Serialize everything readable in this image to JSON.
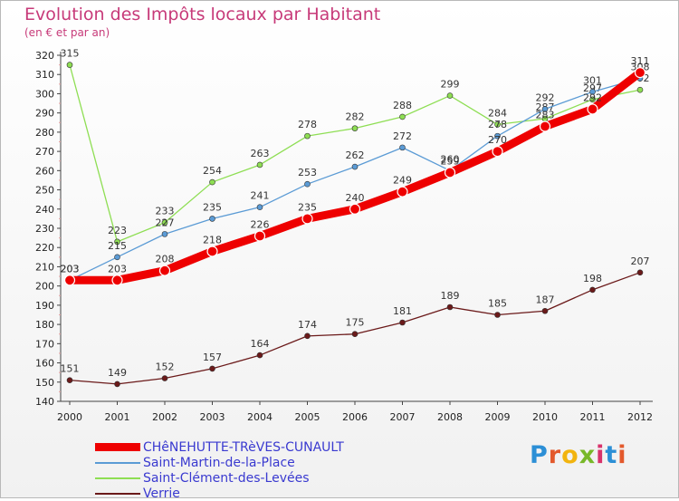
{
  "title": "Evolution des Impôts locaux par Habitant",
  "subtitle": "(en € et par an)",
  "watermark": "Proxiti",
  "chart_data": {
    "type": "line",
    "title": "Evolution des Impôts locaux par Habitant",
    "subtitle": "(en € et par an)",
    "xlabel": "",
    "ylabel": "",
    "ylim": [
      140,
      320
    ],
    "ytick_step": 10,
    "grid": false,
    "categories": [
      "2000",
      "2001",
      "2002",
      "2003",
      "2004",
      "2005",
      "2006",
      "2007",
      "2008",
      "2009",
      "2010",
      "2011",
      "2012"
    ],
    "series": [
      {
        "name": "Verrie",
        "color": "#6b1a1a",
        "emphasis": false,
        "values": [
          151,
          149,
          152,
          157,
          164,
          174,
          175,
          181,
          189,
          185,
          187,
          198,
          207
        ]
      },
      {
        "name": "Saint-Clément-des-Levées",
        "color": "#8ede53",
        "emphasis": false,
        "values": [
          315,
          223,
          233,
          254,
          263,
          278,
          282,
          288,
          299,
          284,
          287,
          297,
          302
        ]
      },
      {
        "name": "Saint-Martin-de-la-Place",
        "color": "#5b9bd5",
        "emphasis": false,
        "values": [
          203,
          215,
          227,
          235,
          241,
          253,
          262,
          272,
          260,
          278,
          292,
          301,
          308
        ]
      },
      {
        "name": "CHêNEHUTTE-TRèVES-CUNAULT",
        "color": "#ee0000",
        "emphasis": true,
        "values": [
          203,
          203,
          208,
          218,
          226,
          235,
          240,
          249,
          259,
          270,
          283,
          292,
          311
        ]
      }
    ],
    "legend": [
      {
        "label": "CHêNEHUTTE-TRèVES-CUNAULT",
        "color": "#ee0000"
      },
      {
        "label": "Saint-Martin-de-la-Place",
        "color": "#5b9bd5"
      },
      {
        "label": "Saint-Clément-des-Levées",
        "color": "#8ede53"
      },
      {
        "label": "Verrie",
        "color": "#6b1a1a"
      }
    ],
    "legend_position": "bottom-left"
  }
}
